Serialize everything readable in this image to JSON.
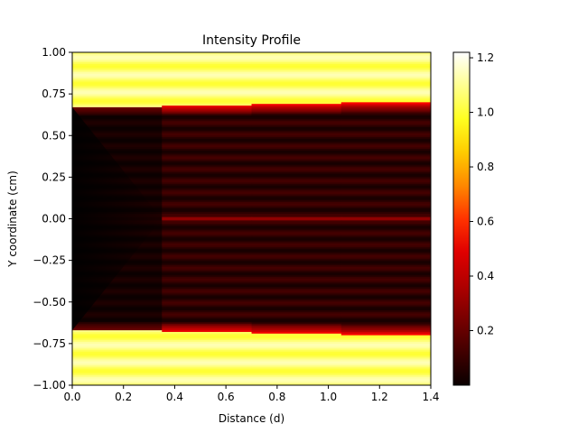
{
  "chart_data": {
    "type": "heatmap",
    "title": "Intensity Profile",
    "xlabel": "Distance (d)",
    "ylabel": "Y coordinate (cm)",
    "xlim": [
      0.0,
      1.4
    ],
    "ylim": [
      -1.0,
      1.0
    ],
    "x_ticks": [
      "0.0",
      "0.2",
      "0.4",
      "0.6",
      "0.8",
      "1.0",
      "1.2",
      "1.4"
    ],
    "y_ticks": [
      "−1.00",
      "−0.75",
      "−0.50",
      "−0.25",
      "0.00",
      "0.25",
      "0.50",
      "0.75",
      "1.00"
    ],
    "colormap": "hot",
    "colorbar": {
      "range": [
        0.0,
        1.22
      ],
      "ticks": [
        "0.2",
        "0.4",
        "0.6",
        "0.8",
        "1.0",
        "1.2"
      ]
    },
    "features": {
      "aperture_half_width_cm_at_0": 0.67,
      "aperture_half_width_cm_at_1_4": 0.7,
      "outer_intensity": 1.05,
      "inner_intensity": 0.08,
      "edge_fringe_peak": 0.45,
      "center_line_intensity": 0.25,
      "center_line_start_d": 0.35,
      "dark_cone_end_d": 0.35
    },
    "grid": false,
    "legend": "none"
  }
}
